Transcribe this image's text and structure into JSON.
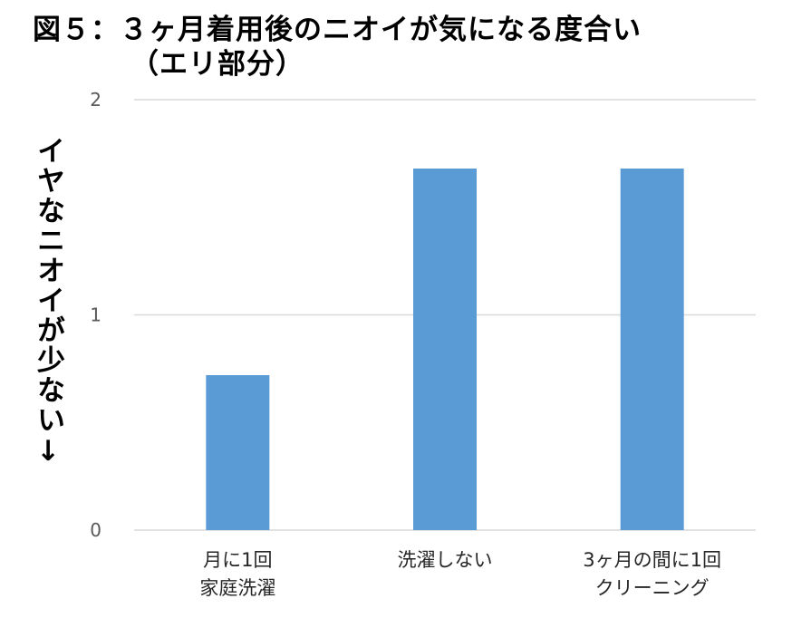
{
  "chart_data": {
    "type": "bar",
    "title_line1": "図５：３ヶ月着用後のニオイが気になる度合い",
    "title_line2": "（エリ部分）",
    "ylabel": "イヤなニオイが少ない↓",
    "xlabel": "",
    "categories": [
      [
        "月に1回",
        "家庭洗濯"
      ],
      [
        "洗濯しない"
      ],
      [
        "3ヶ月の間に1回",
        "クリーニング"
      ]
    ],
    "values": [
      0.72,
      1.68,
      1.68
    ],
    "ylim": [
      0,
      2
    ],
    "yticks": [
      0,
      1,
      2
    ],
    "grid": true,
    "bar_color": "#5b9bd5",
    "grid_color": "#d9d9d9"
  }
}
